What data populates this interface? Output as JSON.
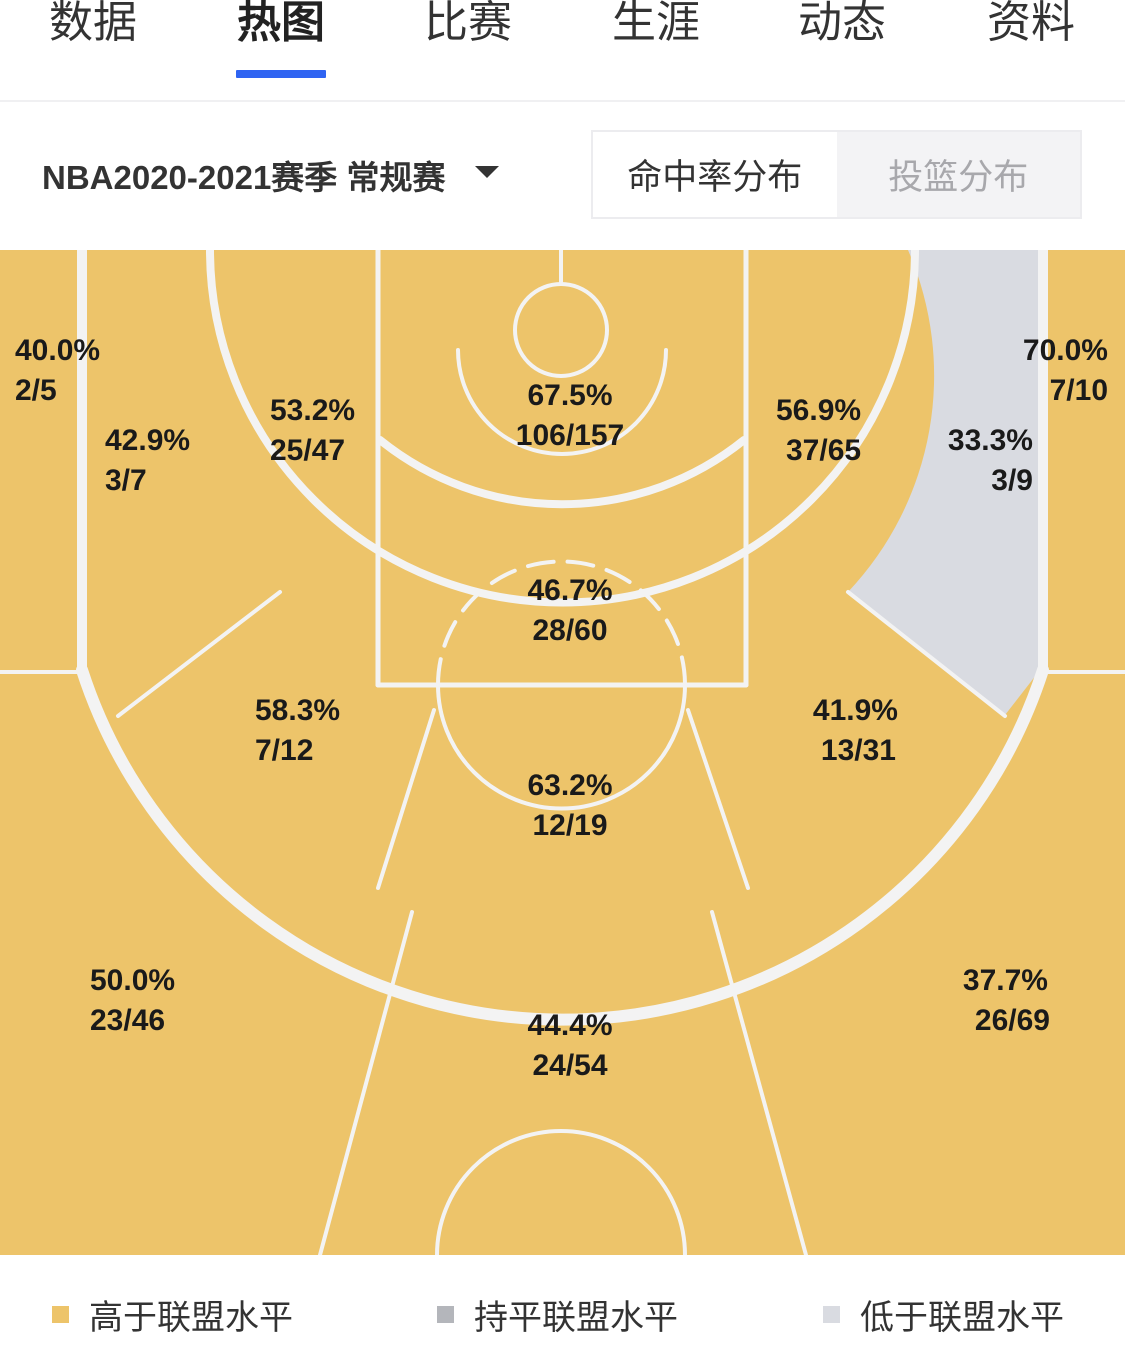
{
  "tabs": [
    {
      "label": "数据"
    },
    {
      "label": "热图"
    },
    {
      "label": "比赛"
    },
    {
      "label": "生涯"
    },
    {
      "label": "动态"
    },
    {
      "label": "资料"
    }
  ],
  "active_tab": "热图",
  "filter": {
    "season": "NBA2020-2021赛季 常规赛",
    "view_toggle": [
      {
        "label": "命中率分布",
        "selected": true
      },
      {
        "label": "投篮分布",
        "selected": false
      }
    ]
  },
  "colors": {
    "above": "#edc46a",
    "equal": "#b4b6bb",
    "below": "#d9dbe1",
    "accent": "#2f64f2"
  },
  "zones": [
    {
      "id": "left-corner-3",
      "pct": "40.0%",
      "made_att": "2/5",
      "level": "above"
    },
    {
      "id": "left-baseline-mid",
      "pct": "42.9%",
      "made_att": "3/7",
      "level": "above"
    },
    {
      "id": "left-short-mid",
      "pct": "53.2%",
      "made_att": "25/47",
      "level": "above"
    },
    {
      "id": "restricted-area",
      "pct": "67.5%",
      "made_att": "106/157",
      "level": "above"
    },
    {
      "id": "right-short-mid",
      "pct": "56.9%",
      "made_att": "37/65",
      "level": "above"
    },
    {
      "id": "right-baseline-mid",
      "pct": "33.3%",
      "made_att": "3/9",
      "level": "below"
    },
    {
      "id": "right-corner-3",
      "pct": "70.0%",
      "made_att": "7/10",
      "level": "above"
    },
    {
      "id": "paint-non-ra",
      "pct": "46.7%",
      "made_att": "28/60",
      "level": "above"
    },
    {
      "id": "left-wing-mid",
      "pct": "58.3%",
      "made_att": "7/12",
      "level": "above"
    },
    {
      "id": "top-key-mid",
      "pct": "63.2%",
      "made_att": "12/19",
      "level": "above"
    },
    {
      "id": "right-wing-mid",
      "pct": "41.9%",
      "made_att": "13/31",
      "level": "above"
    },
    {
      "id": "left-wing-3",
      "pct": "50.0%",
      "made_att": "23/46",
      "level": "above"
    },
    {
      "id": "top-3",
      "pct": "44.4%",
      "made_att": "24/54",
      "level": "above"
    },
    {
      "id": "right-wing-3",
      "pct": "37.7%",
      "made_att": "26/69",
      "level": "above"
    }
  ],
  "legend": [
    {
      "label": "高于联盟水平",
      "level": "above"
    },
    {
      "label": "持平联盟水平",
      "level": "equal"
    },
    {
      "label": "低于联盟水平",
      "level": "below"
    }
  ]
}
